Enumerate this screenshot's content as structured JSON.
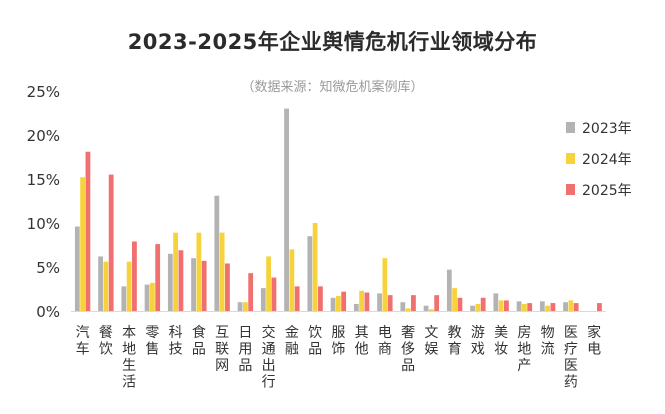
{
  "chart_data": {
    "type": "bar",
    "title": "2023-2025年企业舆情危机行业领域分布",
    "subtitle": "（数据来源：知微危机案例库）",
    "xlabel": "",
    "ylabel": "",
    "ylim": [
      0,
      25
    ],
    "yticks": [
      "0%",
      "5%",
      "10%",
      "15%",
      "20%",
      "25%"
    ],
    "grid": false,
    "legend_position": "right",
    "categories": [
      "汽车",
      "餐饮",
      "本地生活",
      "零售",
      "科技",
      "食品",
      "互联网",
      "日用品",
      "交通出行",
      "金融",
      "饮品",
      "服饰",
      "其他",
      "电商",
      "奢侈品",
      "文娱",
      "教育",
      "游戏",
      "美妆",
      "房地产",
      "物流",
      "医疗医药",
      "家电"
    ],
    "series": [
      {
        "name": "2023年",
        "color": "#b3b3b3",
        "values": [
          9.6,
          6.2,
          2.8,
          3.0,
          6.5,
          6.0,
          13.1,
          1.0,
          2.6,
          23.0,
          8.5,
          1.5,
          0.8,
          2.0,
          1.0,
          0.6,
          4.7,
          0.6,
          2.0,
          1.1,
          1.1,
          1.0,
          0.0
        ]
      },
      {
        "name": "2024年",
        "color": "#f7d23c",
        "values": [
          15.2,
          5.6,
          5.6,
          3.2,
          8.9,
          8.9,
          8.9,
          1.0,
          6.2,
          7.0,
          10.0,
          1.7,
          2.3,
          6.0,
          0.3,
          0.2,
          2.6,
          0.8,
          1.2,
          0.8,
          0.6,
          1.2,
          0.0
        ]
      },
      {
        "name": "2025年",
        "color": "#f0706f",
        "values": [
          18.1,
          15.5,
          7.9,
          7.6,
          6.9,
          5.7,
          5.4,
          4.3,
          3.8,
          2.8,
          2.8,
          2.2,
          2.1,
          1.8,
          1.8,
          1.8,
          1.5,
          1.5,
          1.2,
          0.9,
          0.9,
          0.9,
          0.9
        ]
      }
    ]
  }
}
